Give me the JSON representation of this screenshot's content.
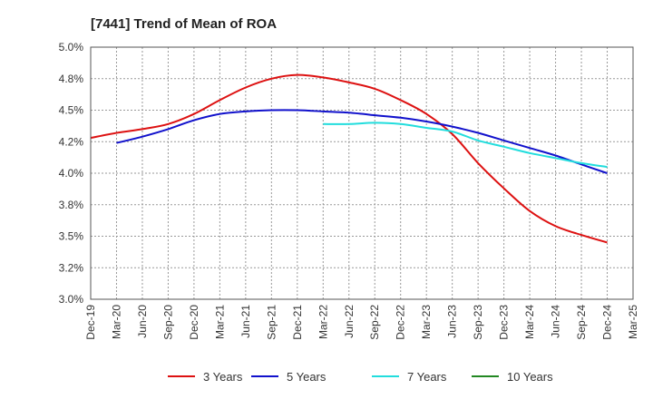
{
  "chart_data": {
    "type": "line",
    "title": "[7441]  Trend of Mean of ROA",
    "xlabel": "",
    "ylabel": "",
    "ylim": [
      3.0,
      5.0
    ],
    "yticks": [
      3.0,
      3.25,
      3.5,
      3.75,
      4.0,
      4.25,
      4.5,
      4.75,
      5.0
    ],
    "ytick_labels": [
      "3.0%",
      "3.2%",
      "3.5%",
      "3.8%",
      "4.0%",
      "4.2%",
      "4.5%",
      "4.8%",
      "5.0%"
    ],
    "x_labels": [
      "Dec-19",
      "Mar-20",
      "Jun-20",
      "Sep-20",
      "Dec-20",
      "Mar-21",
      "Jun-21",
      "Sep-21",
      "Dec-21",
      "Mar-22",
      "Jun-22",
      "Sep-22",
      "Dec-22",
      "Mar-23",
      "Jun-23",
      "Sep-23",
      "Dec-23",
      "Mar-24",
      "Jun-24",
      "Sep-24",
      "Dec-24",
      "Mar-25"
    ],
    "grid": true,
    "legend_position": "bottom",
    "series": [
      {
        "name": "3 Years",
        "color": "#dd1111",
        "points": [
          [
            0,
            4.28
          ],
          [
            1,
            4.32
          ],
          [
            2,
            4.35
          ],
          [
            3,
            4.39
          ],
          [
            4,
            4.47
          ],
          [
            5,
            4.58
          ],
          [
            6,
            4.68
          ],
          [
            7,
            4.75
          ],
          [
            8,
            4.78
          ],
          [
            9,
            4.76
          ],
          [
            10,
            4.72
          ],
          [
            11,
            4.67
          ],
          [
            12,
            4.58
          ],
          [
            13,
            4.47
          ],
          [
            14,
            4.31
          ],
          [
            15,
            4.08
          ],
          [
            16,
            3.88
          ],
          [
            17,
            3.7
          ],
          [
            18,
            3.58
          ],
          [
            19,
            3.51
          ],
          [
            20,
            3.45
          ]
        ]
      },
      {
        "name": "5 Years",
        "color": "#1111cc",
        "points": [
          [
            1,
            4.24
          ],
          [
            2,
            4.29
          ],
          [
            3,
            4.35
          ],
          [
            4,
            4.42
          ],
          [
            5,
            4.47
          ],
          [
            6,
            4.49
          ],
          [
            7,
            4.5
          ],
          [
            8,
            4.5
          ],
          [
            9,
            4.49
          ],
          [
            10,
            4.48
          ],
          [
            11,
            4.46
          ],
          [
            12,
            4.44
          ],
          [
            13,
            4.41
          ],
          [
            14,
            4.37
          ],
          [
            15,
            4.32
          ],
          [
            16,
            4.26
          ],
          [
            17,
            4.2
          ],
          [
            18,
            4.14
          ],
          [
            19,
            4.07
          ],
          [
            20,
            4.0
          ]
        ]
      },
      {
        "name": "7 Years",
        "color": "#22dddd",
        "points": [
          [
            9,
            4.39
          ],
          [
            10,
            4.39
          ],
          [
            11,
            4.4
          ],
          [
            12,
            4.39
          ],
          [
            13,
            4.36
          ],
          [
            14,
            4.33
          ],
          [
            15,
            4.26
          ],
          [
            16,
            4.21
          ],
          [
            17,
            4.16
          ],
          [
            18,
            4.12
          ],
          [
            19,
            4.08
          ],
          [
            20,
            4.05
          ]
        ]
      },
      {
        "name": "10 Years",
        "color": "#228822",
        "points": []
      }
    ]
  }
}
